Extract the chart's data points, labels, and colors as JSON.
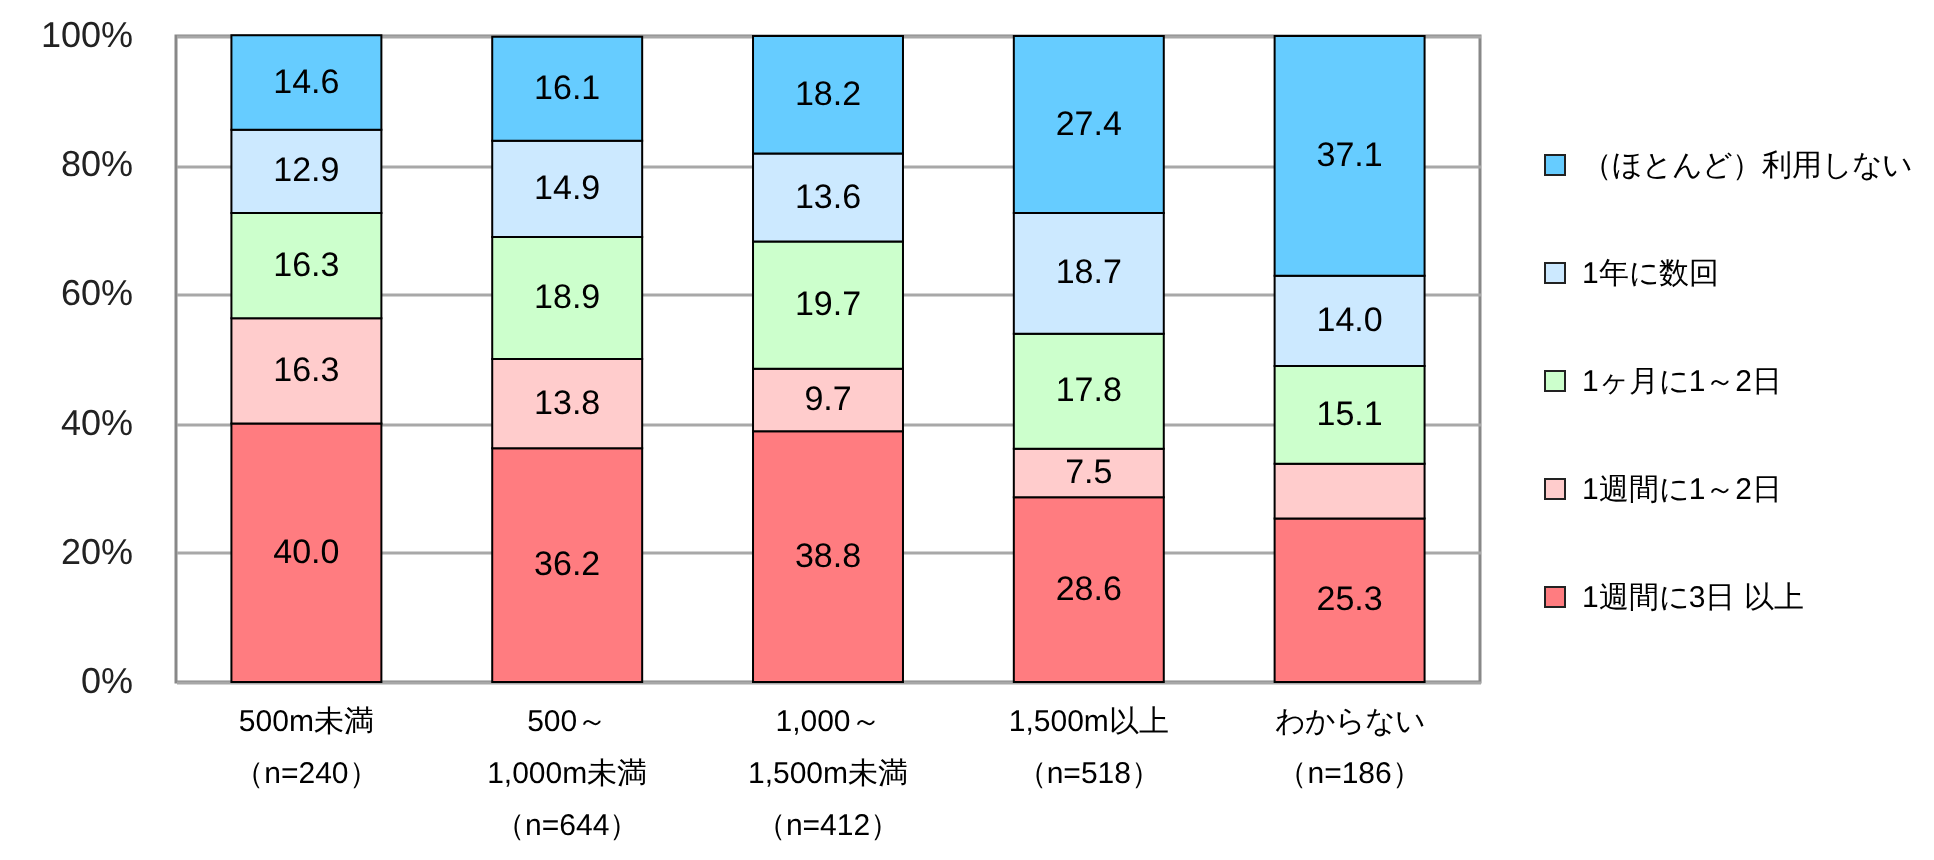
{
  "chart_data": {
    "type": "bar",
    "stacked": true,
    "categories": [
      "500m未満（n=240）",
      "500～1,000m未満（n=644）",
      "1,000～1,500m未満（n=412）",
      "1,500m以上（n=518）",
      "わからない（n=186）"
    ],
    "series": [
      {
        "name": "1週間に3日 以上",
        "color": "#ff7c80",
        "values": [
          40.0,
          36.2,
          38.8,
          28.6,
          25.3
        ],
        "value_labels": [
          "40.0",
          "36.2",
          "38.8",
          "28.6",
          "25.3"
        ]
      },
      {
        "name": "1週間に1～2日",
        "color": "#ffcccc",
        "values": [
          16.3,
          13.8,
          9.7,
          7.5,
          8.5
        ],
        "value_labels": [
          "16.3",
          "13.8",
          "9.7",
          "7.5",
          null
        ]
      },
      {
        "name": "1ヶ月に1～2日",
        "color": "#ccffcc",
        "values": [
          16.3,
          18.9,
          19.7,
          17.8,
          15.1
        ],
        "value_labels": [
          "16.3",
          "18.9",
          "19.7",
          "17.8",
          "15.1"
        ]
      },
      {
        "name": "1年に数回",
        "color": "#cce9ff",
        "values": [
          12.9,
          14.9,
          13.6,
          18.7,
          14.0
        ],
        "value_labels": [
          "12.9",
          "14.9",
          "13.6",
          "18.7",
          "14.0"
        ]
      },
      {
        "name": "（ほとんど）利用しない",
        "color": "#66ccff",
        "values": [
          14.6,
          16.1,
          18.2,
          27.4,
          37.1
        ],
        "value_labels": [
          "14.6",
          "16.1",
          "18.2",
          "27.4",
          "37.1"
        ]
      }
    ],
    "ylim": [
      0,
      100
    ],
    "yticks": [
      {
        "value": 0,
        "label": "0%"
      },
      {
        "value": 20,
        "label": "20%"
      },
      {
        "value": 40,
        "label": "40%"
      },
      {
        "value": 60,
        "label": "60%"
      },
      {
        "value": 80,
        "label": "80%"
      },
      {
        "value": 100,
        "label": "100%"
      }
    ],
    "grid": "y",
    "legend": "right"
  }
}
